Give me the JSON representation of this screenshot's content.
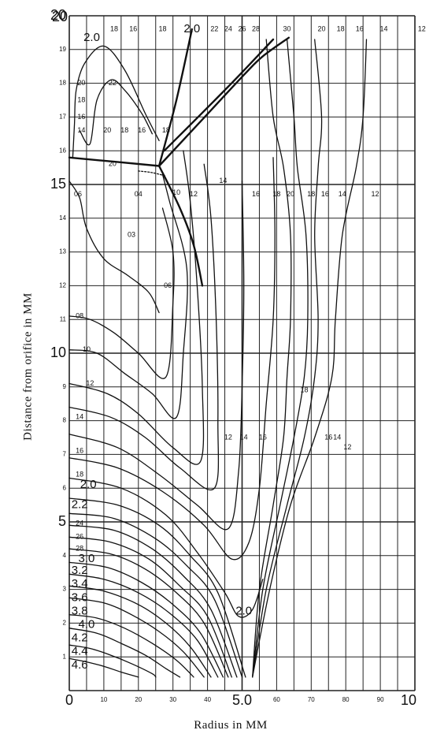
{
  "chart_data": {
    "type": "contour",
    "xlabel": "Radius in MM",
    "ylabel": "Distance from orifice in MM",
    "xlim": [
      0,
      10
    ],
    "ylim": [
      0,
      20
    ],
    "grid": true,
    "x_major_ticks": [
      "0",
      "5.0",
      "10"
    ],
    "x_minor_ticks": [
      "10",
      "20",
      "30",
      "40",
      "60",
      "70",
      "80",
      "90"
    ],
    "y_major_ticks": [
      "5",
      "10",
      "15",
      "20"
    ],
    "y_minor_ticks": [
      "1",
      "2",
      "3",
      "4",
      "6",
      "7",
      "8",
      "9",
      "11",
      "12",
      "13",
      "14",
      "16",
      "17",
      "18",
      "19"
    ],
    "contours": [
      {
        "label": "4.6",
        "points": [
          [
            0,
            0.95
          ],
          [
            0.5,
            0.85
          ],
          [
            1,
            0.72
          ],
          [
            1.5,
            0.55
          ],
          [
            2,
            0.4
          ]
        ]
      },
      {
        "label": "4.4",
        "points": [
          [
            0,
            1.35
          ],
          [
            0.6,
            1.25
          ],
          [
            1.2,
            1.05
          ],
          [
            1.8,
            0.8
          ],
          [
            2.4,
            0.5
          ],
          [
            2.5,
            0.4
          ]
        ]
      },
      {
        "label": "4.2",
        "points": [
          [
            0,
            1.85
          ],
          [
            0.8,
            1.7
          ],
          [
            1.5,
            1.4
          ],
          [
            2.2,
            1.05
          ],
          [
            2.8,
            0.65
          ],
          [
            3.2,
            0.4
          ]
        ]
      },
      {
        "label": "4.0",
        "points": [
          [
            0,
            2.25
          ],
          [
            0.8,
            2.15
          ],
          [
            1.6,
            1.85
          ],
          [
            2.4,
            1.4
          ],
          [
            3.1,
            0.9
          ],
          [
            3.6,
            0.4
          ]
        ]
      },
      {
        "label": "3.8",
        "points": [
          [
            0,
            2.75
          ],
          [
            1,
            2.6
          ],
          [
            1.8,
            2.25
          ],
          [
            2.6,
            1.75
          ],
          [
            3.3,
            1.15
          ],
          [
            3.9,
            0.4
          ]
        ]
      },
      {
        "label": "3.6",
        "points": [
          [
            0,
            3.1
          ],
          [
            1,
            2.95
          ],
          [
            2,
            2.55
          ],
          [
            2.8,
            2
          ],
          [
            3.5,
            1.3
          ],
          [
            4.1,
            0.4
          ]
        ]
      },
      {
        "label": "3.4",
        "points": [
          [
            0,
            3.45
          ],
          [
            1,
            3.3
          ],
          [
            2,
            2.9
          ],
          [
            2.9,
            2.3
          ],
          [
            3.7,
            1.5
          ],
          [
            4.3,
            0.4
          ]
        ]
      },
      {
        "label": "3.2",
        "points": [
          [
            0,
            3.8
          ],
          [
            1.1,
            3.65
          ],
          [
            2.1,
            3.2
          ],
          [
            3,
            2.55
          ],
          [
            3.8,
            1.7
          ],
          [
            4.45,
            0.4
          ]
        ]
      },
      {
        "label": "3.0",
        "points": [
          [
            0,
            4.2
          ],
          [
            1.2,
            4.05
          ],
          [
            2.2,
            3.6
          ],
          [
            3.1,
            2.9
          ],
          [
            3.9,
            2
          ],
          [
            4.6,
            0.4
          ]
        ]
      },
      {
        "label": "2.8",
        "points": [
          [
            0,
            4.55
          ],
          [
            1.2,
            4.4
          ],
          [
            2.3,
            3.9
          ],
          [
            3.2,
            3.1
          ],
          [
            4,
            2.2
          ],
          [
            4.7,
            0.4
          ]
        ]
      },
      {
        "label": "2.6",
        "points": [
          [
            0,
            4.9
          ],
          [
            1.3,
            4.75
          ],
          [
            2.4,
            4.2
          ],
          [
            3.3,
            3.4
          ],
          [
            4.1,
            2.4
          ],
          [
            4.85,
            0.4
          ]
        ]
      },
      {
        "label": "2.4",
        "points": [
          [
            0,
            5.25
          ],
          [
            1.3,
            5.1
          ],
          [
            2.5,
            4.5
          ],
          [
            3.4,
            3.7
          ],
          [
            4.2,
            2.7
          ],
          [
            5,
            0.4
          ]
        ]
      },
      {
        "label": "2.2",
        "points": [
          [
            0,
            5.7
          ],
          [
            1.4,
            5.5
          ],
          [
            2.6,
            4.9
          ],
          [
            3.5,
            4
          ],
          [
            4.3,
            2.9
          ],
          [
            5.1,
            0.4
          ]
        ]
      },
      {
        "label": "2.0",
        "points": [
          [
            0,
            6.3
          ],
          [
            1.5,
            6
          ],
          [
            2.8,
            5.2
          ],
          [
            3.7,
            4.1
          ],
          [
            4.5,
            2.9
          ],
          [
            4.9,
            2.2
          ],
          [
            5.3,
            2.4
          ],
          [
            5.6,
            3.3
          ]
        ]
      },
      {
        "label": "1.8",
        "points": [
          [
            0,
            6.9
          ],
          [
            1.4,
            6.6
          ],
          [
            2.7,
            5.9
          ],
          [
            3.9,
            4.9
          ],
          [
            4.7,
            3.9
          ],
          [
            5.2,
            4.4
          ],
          [
            5.5,
            6
          ],
          [
            5.7,
            8.5
          ],
          [
            5.9,
            11
          ],
          [
            5.95,
            13.5
          ],
          [
            5.9,
            15.8
          ]
        ]
      },
      {
        "label": "1.6",
        "points": [
          [
            0,
            7.6
          ],
          [
            1.4,
            7.2
          ],
          [
            2.6,
            6.4
          ],
          [
            3.7,
            5.5
          ],
          [
            4.6,
            4.8
          ],
          [
            4.9,
            6.5
          ],
          [
            5,
            9
          ],
          [
            5.05,
            12
          ],
          [
            5,
            15.1
          ]
        ]
      },
      {
        "label": "1.4",
        "points": [
          [
            0,
            8.4
          ],
          [
            1.2,
            8.1
          ],
          [
            2.2,
            7.5
          ],
          [
            3.2,
            6.6
          ],
          [
            4.2,
            6
          ],
          [
            4.3,
            8
          ],
          [
            4.25,
            11
          ],
          [
            4.1,
            14
          ],
          [
            3.9,
            15.6
          ]
        ]
      },
      {
        "label": "1.2",
        "points": [
          [
            0,
            9.1
          ],
          [
            1.1,
            8.8
          ],
          [
            2,
            8.2
          ],
          [
            3,
            7.2
          ],
          [
            3.8,
            6.8
          ],
          [
            3.85,
            9
          ],
          [
            3.7,
            12
          ],
          [
            3.5,
            14.5
          ],
          [
            3.3,
            16
          ]
        ]
      },
      {
        "label": "1.0",
        "points": [
          [
            0,
            10.1
          ],
          [
            0.8,
            10
          ],
          [
            1.6,
            9.4
          ],
          [
            2.4,
            8.8
          ],
          [
            3.1,
            8.1
          ],
          [
            3.3,
            10
          ],
          [
            3.4,
            12.5
          ],
          [
            2.9,
            14.5
          ],
          [
            2.7,
            15.3
          ]
        ]
      },
      {
        "label": "0.8",
        "points": [
          [
            0,
            11.1
          ],
          [
            0.6,
            11
          ],
          [
            1.3,
            10.6
          ],
          [
            2,
            10
          ],
          [
            2.8,
            9.3
          ],
          [
            3,
            11.5
          ],
          [
            3,
            13
          ],
          [
            2.7,
            14.3
          ]
        ]
      },
      {
        "label": "0.6",
        "points": [
          [
            0,
            15.1
          ],
          [
            0.3,
            14.6
          ],
          [
            0.5,
            13.7
          ],
          [
            1,
            12.8
          ],
          [
            1.7,
            12.3
          ],
          [
            2.3,
            11.8
          ],
          [
            2.6,
            11.2
          ]
        ]
      },
      {
        "label": "0.3",
        "points": [
          [
            2.0,
            15.4
          ],
          [
            2.4,
            15.35
          ],
          [
            2.8,
            15.25
          ]
        ]
      },
      {
        "label": "1.2 (outer)",
        "points": [
          [
            5.3,
            0.4
          ],
          [
            5.8,
            3
          ],
          [
            6.4,
            5.5
          ],
          [
            7.1,
            7.5
          ],
          [
            7.6,
            9.3
          ],
          [
            7.7,
            11
          ],
          [
            7.9,
            13.5
          ],
          [
            8.3,
            15.5
          ],
          [
            8.5,
            17
          ],
          [
            8.6,
            19.3
          ]
        ]
      },
      {
        "label": "1.4 (outer)",
        "points": [
          [
            5.3,
            0.4
          ],
          [
            5.7,
            3
          ],
          [
            6.3,
            5.5
          ],
          [
            6.8,
            7.5
          ],
          [
            7.1,
            9.3
          ],
          [
            7.2,
            11
          ],
          [
            7.1,
            13.5
          ],
          [
            7.2,
            15.5
          ],
          [
            7.3,
            17
          ],
          [
            7.1,
            19.3
          ]
        ]
      },
      {
        "label": "1.6 (outer)",
        "points": [
          [
            5.3,
            0.4
          ],
          [
            5.6,
            3
          ],
          [
            6.1,
            5.5
          ],
          [
            6.5,
            7.5
          ],
          [
            6.8,
            9.3
          ],
          [
            6.9,
            11
          ],
          [
            6.85,
            13.5
          ],
          [
            6.6,
            15.5
          ],
          [
            6.5,
            17
          ],
          [
            6.3,
            19.3
          ]
        ]
      },
      {
        "label": "1.8 (outer)",
        "points": [
          [
            5.3,
            0.4
          ],
          [
            5.5,
            3
          ],
          [
            5.9,
            5.5
          ],
          [
            6.2,
            7.5
          ],
          [
            6.3,
            9.3
          ],
          [
            6.4,
            11
          ],
          [
            6.4,
            13.5
          ],
          [
            6.2,
            15.5
          ],
          [
            5.9,
            17
          ],
          [
            5.7,
            19.3
          ]
        ]
      },
      {
        "label": "1.6 (upper)",
        "points": [
          [
            0.1,
            15.8
          ],
          [
            0.15,
            16.8
          ],
          [
            0.2,
            17.8
          ],
          [
            0.45,
            18.6
          ],
          [
            1,
            19.1
          ],
          [
            1.6,
            18.4
          ],
          [
            2.2,
            17.1
          ],
          [
            2.6,
            16.3
          ]
        ]
      },
      {
        "label": "2.0 (upper)",
        "points": [
          [
            0.3,
            16.6
          ],
          [
            0.6,
            16.2
          ],
          [
            0.8,
            17.5
          ],
          [
            1.2,
            18.1
          ],
          [
            1.6,
            17.8
          ],
          [
            2.1,
            17.1
          ],
          [
            2.4,
            16.5
          ]
        ]
      }
    ],
    "annotations": [
      {
        "text": "2.0",
        "x": 0.65,
        "y": 19.35
      },
      {
        "text": "18",
        "x": 1.3,
        "y": 19.6
      },
      {
        "text": "16",
        "x": 1.85,
        "y": 19.6
      },
      {
        "text": "18",
        "x": 2.7,
        "y": 19.6
      },
      {
        "text": "2.0",
        "x": 3.55,
        "y": 19.6
      },
      {
        "text": "22",
        "x": 4.2,
        "y": 19.6
      },
      {
        "text": "24",
        "x": 4.6,
        "y": 19.6
      },
      {
        "text": "26",
        "x": 5.0,
        "y": 19.6
      },
      {
        "text": "28",
        "x": 5.4,
        "y": 19.6
      },
      {
        "text": "30",
        "x": 6.3,
        "y": 19.6
      },
      {
        "text": "20",
        "x": 7.3,
        "y": 19.6
      },
      {
        "text": "18",
        "x": 7.85,
        "y": 19.6
      },
      {
        "text": "16",
        "x": 8.4,
        "y": 19.6
      },
      {
        "text": "14",
        "x": 9.1,
        "y": 19.6
      },
      {
        "text": "12",
        "x": 10.2,
        "y": 19.6
      },
      {
        "text": "20",
        "x": 0.35,
        "y": 18.0
      },
      {
        "text": "22",
        "x": 1.25,
        "y": 18.0
      },
      {
        "text": "18",
        "x": 0.35,
        "y": 17.5
      },
      {
        "text": "16",
        "x": 0.35,
        "y": 17.0
      },
      {
        "text": "14",
        "x": 0.35,
        "y": 16.6
      },
      {
        "text": "20",
        "x": 1.1,
        "y": 16.6
      },
      {
        "text": "18",
        "x": 1.6,
        "y": 16.6
      },
      {
        "text": "16",
        "x": 2.1,
        "y": 16.6
      },
      {
        "text": "18",
        "x": 2.8,
        "y": 16.6
      },
      {
        "text": "20",
        "x": 1.25,
        "y": 15.6
      },
      {
        "text": "06",
        "x": 0.25,
        "y": 14.7
      },
      {
        "text": "04",
        "x": 2.0,
        "y": 14.7
      },
      {
        "text": "10",
        "x": 3.1,
        "y": 14.75
      },
      {
        "text": "12",
        "x": 3.6,
        "y": 14.7
      },
      {
        "text": "14",
        "x": 4.45,
        "y": 15.1
      },
      {
        "text": "16",
        "x": 5.4,
        "y": 14.7
      },
      {
        "text": "18",
        "x": 6.0,
        "y": 14.7
      },
      {
        "text": "20",
        "x": 6.4,
        "y": 14.7
      },
      {
        "text": "18",
        "x": 7.0,
        "y": 14.7
      },
      {
        "text": "16",
        "x": 7.4,
        "y": 14.7
      },
      {
        "text": "14",
        "x": 7.9,
        "y": 14.7
      },
      {
        "text": "12",
        "x": 8.85,
        "y": 14.7
      },
      {
        "text": "03",
        "x": 1.8,
        "y": 13.5
      },
      {
        "text": "06",
        "x": 2.85,
        "y": 12.0
      },
      {
        "text": "08",
        "x": 0.3,
        "y": 11.1
      },
      {
        "text": "10",
        "x": 0.5,
        "y": 10.1
      },
      {
        "text": "12",
        "x": 0.6,
        "y": 9.1
      },
      {
        "text": "14",
        "x": 0.3,
        "y": 8.1
      },
      {
        "text": "12",
        "x": 4.6,
        "y": 7.5
      },
      {
        "text": "14",
        "x": 5.05,
        "y": 7.5
      },
      {
        "text": "16",
        "x": 5.6,
        "y": 7.5
      },
      {
        "text": "18",
        "x": 6.8,
        "y": 8.9
      },
      {
        "text": "16",
        "x": 7.5,
        "y": 7.5
      },
      {
        "text": "14",
        "x": 7.75,
        "y": 7.5
      },
      {
        "text": "12",
        "x": 8.05,
        "y": 7.2
      },
      {
        "text": "16",
        "x": 0.3,
        "y": 7.1
      },
      {
        "text": "18",
        "x": 0.3,
        "y": 6.4
      },
      {
        "text": "2.0",
        "x": 0.55,
        "y": 6.1
      },
      {
        "text": "2.2",
        "x": 0.3,
        "y": 5.5
      },
      {
        "text": "24",
        "x": 0.3,
        "y": 4.95
      },
      {
        "text": "26",
        "x": 0.3,
        "y": 4.55
      },
      {
        "text": "28",
        "x": 0.3,
        "y": 4.2
      },
      {
        "text": "3.0",
        "x": 0.5,
        "y": 3.9
      },
      {
        "text": "3.2",
        "x": 0.3,
        "y": 3.55
      },
      {
        "text": "3.4",
        "x": 0.3,
        "y": 3.15
      },
      {
        "text": "3.6",
        "x": 0.3,
        "y": 2.75
      },
      {
        "text": "3.8",
        "x": 0.3,
        "y": 2.35
      },
      {
        "text": "4.0",
        "x": 0.5,
        "y": 1.95
      },
      {
        "text": "4.2",
        "x": 0.3,
        "y": 1.55
      },
      {
        "text": "4.4",
        "x": 0.3,
        "y": 1.15
      },
      {
        "text": "4.6",
        "x": 0.3,
        "y": 0.75
      },
      {
        "text": "2.0",
        "x": 5.05,
        "y": 2.35
      }
    ]
  },
  "colors": {
    "background": "#ffffff",
    "ink": "#111111",
    "grid": "#222222"
  }
}
